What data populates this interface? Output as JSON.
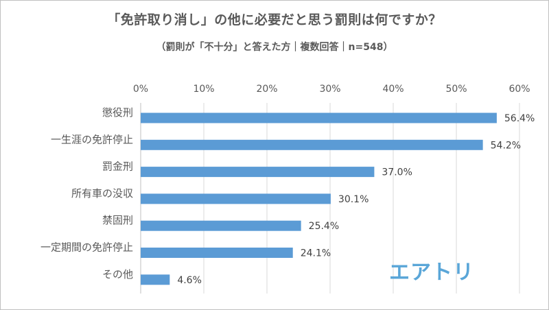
{
  "title": "「免許取り消し」の他に必要だと思う罰則は何ですか？",
  "subtitle": "（罰則が「不十分」と答えた方｜複数回答｜n=548）",
  "logo_text": "エアトリ",
  "colors": {
    "bar": "#5b9bd5",
    "grid": "#d9d9d9",
    "axis": "#bfbfbf"
  },
  "chart_data": {
    "type": "bar",
    "orientation": "horizontal",
    "title": "「免許取り消し」の他に必要だと思う罰則は何ですか？",
    "subtitle": "（罰則が「不十分」と答えた方｜複数回答｜n=548）",
    "categories": [
      "懲役刑",
      "一生涯の免許停止",
      "罰金刑",
      "所有車の没収",
      "禁固刑",
      "一定期間の免許停止",
      "その他"
    ],
    "values": [
      56.4,
      54.2,
      37.0,
      30.1,
      25.4,
      24.1,
      4.6
    ],
    "value_labels": [
      "56.4%",
      "54.2%",
      "37.0%",
      "30.1%",
      "25.4%",
      "24.1%",
      "4.6%"
    ],
    "xlim": [
      0,
      60
    ],
    "ticks": [
      0,
      10,
      20,
      30,
      40,
      50,
      60
    ],
    "tick_labels": [
      "0%",
      "10%",
      "20%",
      "30%",
      "40%",
      "50%",
      "60%"
    ],
    "axis_position": "top",
    "grid": true,
    "legend": "none"
  }
}
